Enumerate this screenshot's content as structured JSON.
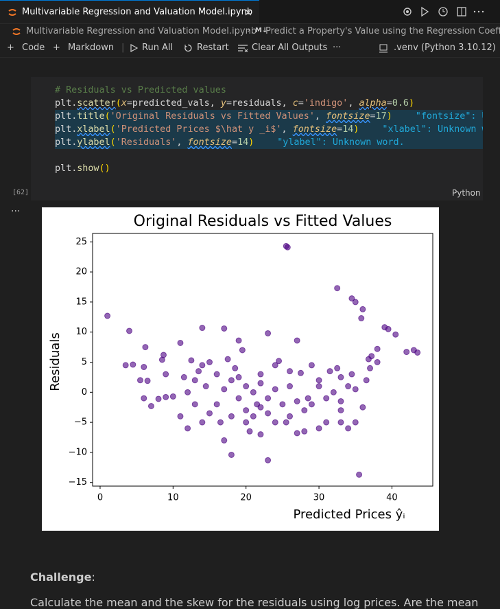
{
  "tab": {
    "title": "Multivariable Regression and Valuation Model.ipynb"
  },
  "breadcrumb": [
    "Multivariable Regression and Valuation Model.ipynb",
    "Predict a Property's Value using the Regression Coeffic"
  ],
  "toolbar": {
    "items": [
      "Code",
      "Markdown",
      "Run All",
      "Restart",
      "Clear All Outputs"
    ],
    "kernel": ".venv (Python 3.10.12)"
  },
  "cell": {
    "lines": [
      {
        "tokens": [
          "# Residuals vs Predicted values"
        ]
      },
      {
        "tokens": [
          "plt",
          ".",
          "scatter",
          "(",
          "x",
          "=",
          "predicted_vals",
          ", ",
          "y",
          "=",
          "residuals",
          ", ",
          "c",
          "=",
          "'indigo'",
          ", ",
          "alpha",
          "=",
          "0.6",
          ")"
        ]
      },
      {
        "tokens": [
          "plt",
          ".",
          "title",
          "(",
          "'Original Residuals vs Fitted Values'",
          ", ",
          "fontsize",
          "=",
          "17",
          ")"
        ],
        "hint": "\"fontsize\": Unknown word."
      },
      {
        "tokens": [
          "plt",
          ".",
          "xlabel",
          "(",
          "'Predicted Prices $\\hat y _i$'",
          ", ",
          "fontsize",
          "=",
          "14",
          ")"
        ],
        "hint": "\"xlabel\": Unknown word."
      },
      {
        "tokens": [
          "plt",
          ".",
          "ylabel",
          "(",
          "'Residuals'",
          ", ",
          "fontsize",
          "=",
          "14",
          ")"
        ],
        "hint": "\"ylabel\": Unknown word."
      },
      {
        "tokens": []
      },
      {
        "tokens": [
          "plt",
          ".",
          "show",
          "(",
          ")"
        ]
      }
    ],
    "execution_count": "[62]",
    "language": "Python"
  },
  "chart_data": {
    "type": "scatter",
    "title": "Original Residuals vs Fitted Values",
    "xlabel": "Predicted Prices ŷᵢ",
    "ylabel": "Residuals",
    "color": "#4b0082",
    "alpha": 0.6,
    "xlim": [
      -1.03,
      45.6
    ],
    "ylim": [
      -15.6,
      26.4
    ],
    "xticks": [
      0,
      10,
      20,
      30,
      40
    ],
    "yticks": [
      {
        "value": -15,
        "label": "−15"
      },
      {
        "value": -10,
        "label": "−10"
      },
      {
        "value": -5,
        "label": "−5"
      },
      0,
      5,
      10,
      15,
      20,
      25
    ],
    "grid": false,
    "x": [
      1,
      4,
      25.5,
      25.7,
      32.5,
      34.5,
      35,
      36,
      35.8,
      39,
      39.5,
      40.5,
      42,
      43,
      43.5,
      11,
      14,
      17,
      19,
      23,
      27,
      35.5,
      23,
      18,
      17,
      3.5,
      4.5,
      6,
      5.5,
      6.5,
      6,
      7,
      8,
      9,
      10,
      9,
      8.5,
      8.7,
      6.2,
      12,
      11,
      14,
      15,
      16,
      18,
      20,
      20.5,
      22,
      24,
      26,
      27,
      28,
      30,
      31,
      33,
      34,
      35,
      36,
      37,
      38,
      38,
      37.2,
      36.8,
      33,
      30,
      29,
      26,
      24,
      22,
      21,
      20,
      19,
      18,
      17,
      16,
      15,
      14,
      13,
      12,
      13,
      21.5,
      22,
      23,
      24,
      25,
      26,
      27,
      28,
      29,
      30,
      31,
      32,
      33,
      34,
      35,
      20,
      21,
      22,
      23,
      19,
      18.5,
      17.5,
      16.5,
      14.5,
      13.5,
      25.5,
      28.5,
      31.5,
      32.5,
      34.5,
      19.5,
      12.5,
      11.5,
      24.5,
      27.5,
      33,
      36.5
    ],
    "y": [
      12.7,
      10.2,
      24.3,
      24.1,
      17.3,
      15.6,
      15,
      13.8,
      12.3,
      10.8,
      10.5,
      9.6,
      6.7,
      7,
      6.6,
      8.2,
      10.7,
      10.6,
      8.6,
      9.8,
      8.6,
      -13.7,
      -11.3,
      -10.4,
      -8,
      4.5,
      4.6,
      4.2,
      2,
      1.9,
      -1,
      -2.3,
      -1.1,
      -0.8,
      -0.7,
      3,
      5.4,
      6.2,
      7.5,
      -6,
      -4,
      -5,
      -3.5,
      -2,
      -4,
      -5,
      -6.5,
      -7,
      -5,
      -4,
      -6.8,
      -6.5,
      -6,
      -5,
      -5,
      -6,
      -5,
      -2.5,
      4,
      5,
      7.2,
      6,
      5.5,
      2.5,
      1,
      4.5,
      3.5,
      4.5,
      3,
      0,
      1,
      -1,
      2,
      0.5,
      3,
      5,
      4.5,
      2,
      0,
      -2,
      -2,
      1.5,
      -1,
      0.5,
      -2,
      1,
      -1.5,
      -3,
      -2,
      2,
      -1,
      0,
      -3,
      1,
      0.5,
      -3,
      -4,
      -2.5,
      -3.5,
      2.5,
      4,
      5.5,
      -5,
      1,
      3.5,
      -5,
      -1,
      3.5,
      4,
      3,
      7,
      5.3,
      2.5,
      5.2,
      3.2,
      -1.5,
      2
    ]
  },
  "markdown": {
    "heading": "Challenge",
    "heading_suffix": ":",
    "paragraph": "Calculate the mean and the skew for the residuals using log prices. Are the mean"
  }
}
